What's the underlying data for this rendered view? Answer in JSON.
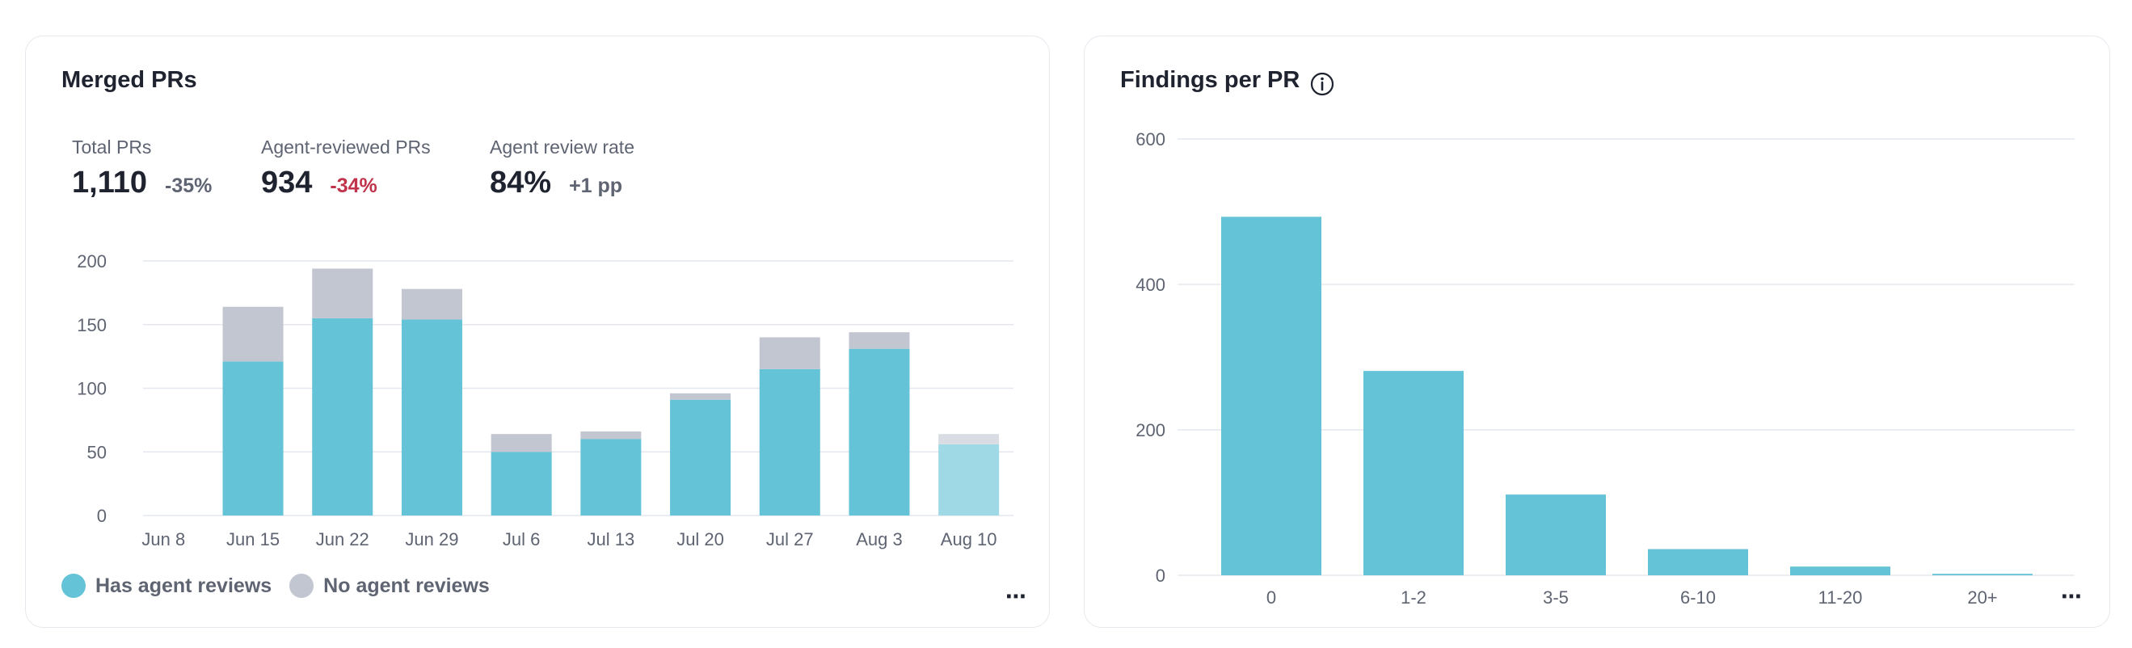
{
  "left_card": {
    "title": "Merged PRs",
    "stats": [
      {
        "label": "Total PRs",
        "value": "1,110",
        "delta": "-35%",
        "delta_color": "#5f6472"
      },
      {
        "label": "Agent-reviewed PRs",
        "value": "934",
        "delta": "-34%",
        "delta_color": "#c0334a"
      },
      {
        "label": "Agent review rate",
        "value": "84%",
        "delta": "+1 pp",
        "delta_color": "#5f6472"
      }
    ],
    "legend": [
      {
        "label": "Has agent reviews",
        "color": "#64c3d7"
      },
      {
        "label": "No agent reviews",
        "color": "#c2c6d1"
      }
    ],
    "more_label": "⋯"
  },
  "right_card": {
    "title": "Findings per PR",
    "info_icon": "info-icon",
    "more_label": "⋯"
  },
  "colors": {
    "bar_primary": "#64c3d7",
    "bar_primary_light": "#9fd9e6",
    "bar_secondary": "#c2c6d1",
    "bar_secondary_light": "#d9dce3",
    "grid": "#e4e7ee",
    "tick": "#5f6472"
  },
  "chart_data": [
    {
      "type": "bar",
      "stacked": true,
      "categories": [
        "Jun 8",
        "Jun 15",
        "Jun 22",
        "Jun 29",
        "Jul 6",
        "Jul 13",
        "Jul 20",
        "Jul 27",
        "Aug 3",
        "Aug 10"
      ],
      "series": [
        {
          "name": "Has agent reviews",
          "values": [
            0,
            121,
            155,
            154,
            50,
            60,
            91,
            115,
            131,
            56
          ]
        },
        {
          "name": "No agent reviews",
          "values": [
            0,
            43,
            39,
            24,
            14,
            6,
            5,
            25,
            13,
            8
          ]
        }
      ],
      "yticks": [
        0,
        50,
        100,
        150,
        200
      ],
      "ylim": [
        0,
        200
      ],
      "grid": true,
      "last_bar_partial": true
    },
    {
      "type": "bar",
      "categories": [
        "0",
        "1-2",
        "3-5",
        "6-10",
        "11-20",
        "20+"
      ],
      "values": [
        493,
        281,
        111,
        36,
        12,
        2
      ],
      "yticks": [
        0,
        200,
        400,
        600
      ],
      "ylim": [
        0,
        600
      ],
      "grid": true
    }
  ]
}
